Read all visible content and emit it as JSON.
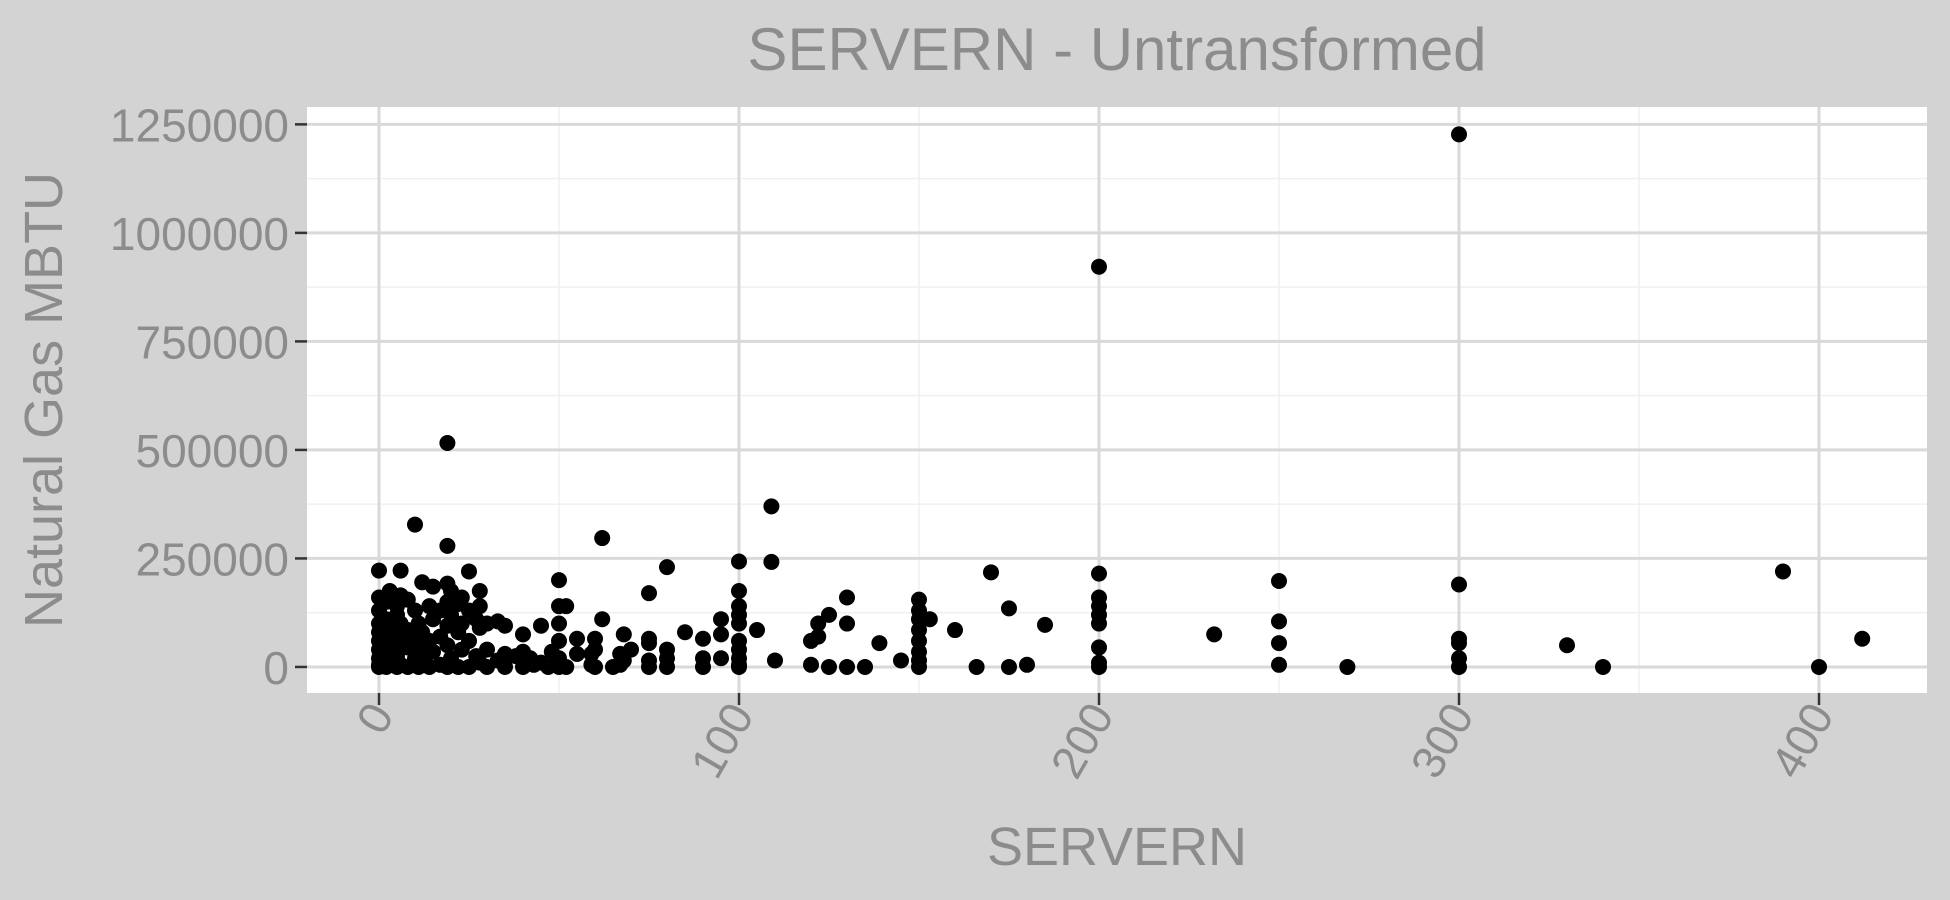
{
  "chart_data": {
    "type": "scatter",
    "title": "SERVERN - Untransformed",
    "xlabel": "SERVERN",
    "ylabel": "Natural Gas MBTU",
    "xlim": [
      -20,
      430
    ],
    "ylim": [
      -60000,
      1290000
    ],
    "x_ticks": [
      0,
      100,
      200,
      300,
      400
    ],
    "x_tick_labels": [
      "0",
      "100",
      "200",
      "300",
      "400"
    ],
    "y_ticks": [
      0,
      250000,
      500000,
      750000,
      1000000,
      1250000
    ],
    "y_tick_labels": [
      "0",
      "250000",
      "500000",
      "750000",
      "1000000",
      "1250000"
    ],
    "grid": true,
    "legend": "none",
    "colors": {
      "panel": "#ffffff",
      "background": "#d3d3d3",
      "grid": "#d9d9d9",
      "point": "#000000",
      "text": "#8c8c8c"
    },
    "points": [
      {
        "x": 0,
        "y": 222000
      },
      {
        "x": 0,
        "y": 160000
      },
      {
        "x": 0,
        "y": 130000
      },
      {
        "x": 0,
        "y": 100000
      },
      {
        "x": 0,
        "y": 80000
      },
      {
        "x": 0,
        "y": 60000
      },
      {
        "x": 0,
        "y": 40000
      },
      {
        "x": 0,
        "y": 20000
      },
      {
        "x": 0,
        "y": 5000
      },
      {
        "x": 0,
        "y": 0
      },
      {
        "x": 2,
        "y": 150000
      },
      {
        "x": 2,
        "y": 110000
      },
      {
        "x": 2,
        "y": 70000
      },
      {
        "x": 2,
        "y": 30000
      },
      {
        "x": 2,
        "y": 0
      },
      {
        "x": 3,
        "y": 175000
      },
      {
        "x": 3,
        "y": 90000
      },
      {
        "x": 3,
        "y": 50000
      },
      {
        "x": 3,
        "y": 10000
      },
      {
        "x": 5,
        "y": 140000
      },
      {
        "x": 5,
        "y": 120000
      },
      {
        "x": 5,
        "y": 75000
      },
      {
        "x": 5,
        "y": 25000
      },
      {
        "x": 5,
        "y": 0
      },
      {
        "x": 6,
        "y": 222000
      },
      {
        "x": 6,
        "y": 165000
      },
      {
        "x": 6,
        "y": 100000
      },
      {
        "x": 6,
        "y": 55000
      },
      {
        "x": 6,
        "y": 5000
      },
      {
        "x": 8,
        "y": 155000
      },
      {
        "x": 8,
        "y": 85000
      },
      {
        "x": 8,
        "y": 45000
      },
      {
        "x": 8,
        "y": 0
      },
      {
        "x": 10,
        "y": 328000
      },
      {
        "x": 10,
        "y": 130000
      },
      {
        "x": 10,
        "y": 65000
      },
      {
        "x": 10,
        "y": 20000
      },
      {
        "x": 11,
        "y": 100000
      },
      {
        "x": 11,
        "y": 40000
      },
      {
        "x": 11,
        "y": 0
      },
      {
        "x": 12,
        "y": 195000
      },
      {
        "x": 12,
        "y": 80000
      },
      {
        "x": 12,
        "y": 15000
      },
      {
        "x": 14,
        "y": 140000
      },
      {
        "x": 14,
        "y": 60000
      },
      {
        "x": 14,
        "y": 0
      },
      {
        "x": 15,
        "y": 185000
      },
      {
        "x": 15,
        "y": 110000
      },
      {
        "x": 15,
        "y": 35000
      },
      {
        "x": 17,
        "y": 130000
      },
      {
        "x": 17,
        "y": 70000
      },
      {
        "x": 17,
        "y": 5000
      },
      {
        "x": 19,
        "y": 516000
      },
      {
        "x": 19,
        "y": 279000
      },
      {
        "x": 19,
        "y": 192000
      },
      {
        "x": 19,
        "y": 150000
      },
      {
        "x": 19,
        "y": 95000
      },
      {
        "x": 19,
        "y": 50000
      },
      {
        "x": 19,
        "y": 0
      },
      {
        "x": 20,
        "y": 175000
      },
      {
        "x": 20,
        "y": 120000
      },
      {
        "x": 20,
        "y": 20000
      },
      {
        "x": 22,
        "y": 145000
      },
      {
        "x": 22,
        "y": 80000
      },
      {
        "x": 22,
        "y": 0
      },
      {
        "x": 23,
        "y": 160000
      },
      {
        "x": 23,
        "y": 100000
      },
      {
        "x": 23,
        "y": 40000
      },
      {
        "x": 25,
        "y": 220000
      },
      {
        "x": 25,
        "y": 130000
      },
      {
        "x": 25,
        "y": 60000
      },
      {
        "x": 25,
        "y": 0
      },
      {
        "x": 27,
        "y": 110000
      },
      {
        "x": 27,
        "y": 25000
      },
      {
        "x": 28,
        "y": 175000
      },
      {
        "x": 28,
        "y": 140000
      },
      {
        "x": 28,
        "y": 90000
      },
      {
        "x": 28,
        "y": 10000
      },
      {
        "x": 30,
        "y": 100000
      },
      {
        "x": 30,
        "y": 40000
      },
      {
        "x": 30,
        "y": 0
      },
      {
        "x": 33,
        "y": 105000
      },
      {
        "x": 33,
        "y": 15000
      },
      {
        "x": 35,
        "y": 95000
      },
      {
        "x": 35,
        "y": 30000
      },
      {
        "x": 35,
        "y": 0
      },
      {
        "x": 38,
        "y": 25000
      },
      {
        "x": 40,
        "y": 75000
      },
      {
        "x": 40,
        "y": 35000
      },
      {
        "x": 40,
        "y": 0
      },
      {
        "x": 42,
        "y": 20000
      },
      {
        "x": 43,
        "y": 5000
      },
      {
        "x": 45,
        "y": 95000
      },
      {
        "x": 45,
        "y": 10000
      },
      {
        "x": 47,
        "y": 0
      },
      {
        "x": 48,
        "y": 35000
      },
      {
        "x": 50,
        "y": 200000
      },
      {
        "x": 50,
        "y": 140000
      },
      {
        "x": 50,
        "y": 100000
      },
      {
        "x": 50,
        "y": 60000
      },
      {
        "x": 50,
        "y": 20000
      },
      {
        "x": 50,
        "y": 0
      },
      {
        "x": 52,
        "y": 140000
      },
      {
        "x": 52,
        "y": 0
      },
      {
        "x": 55,
        "y": 65000
      },
      {
        "x": 55,
        "y": 30000
      },
      {
        "x": 59,
        "y": 30000
      },
      {
        "x": 59,
        "y": 5000
      },
      {
        "x": 60,
        "y": 65000
      },
      {
        "x": 60,
        "y": 40000
      },
      {
        "x": 60,
        "y": 0
      },
      {
        "x": 62,
        "y": 297000
      },
      {
        "x": 62,
        "y": 110000
      },
      {
        "x": 65,
        "y": 0
      },
      {
        "x": 67,
        "y": 30000
      },
      {
        "x": 67,
        "y": 5000
      },
      {
        "x": 68,
        "y": 75000
      },
      {
        "x": 68,
        "y": 15000
      },
      {
        "x": 70,
        "y": 40000
      },
      {
        "x": 75,
        "y": 170000
      },
      {
        "x": 75,
        "y": 65000
      },
      {
        "x": 75,
        "y": 55000
      },
      {
        "x": 75,
        "y": 15000
      },
      {
        "x": 75,
        "y": 0
      },
      {
        "x": 80,
        "y": 230000
      },
      {
        "x": 80,
        "y": 40000
      },
      {
        "x": 80,
        "y": 20000
      },
      {
        "x": 80,
        "y": 0
      },
      {
        "x": 85,
        "y": 80000
      },
      {
        "x": 90,
        "y": 65000
      },
      {
        "x": 90,
        "y": 20000
      },
      {
        "x": 90,
        "y": 0
      },
      {
        "x": 95,
        "y": 110000
      },
      {
        "x": 95,
        "y": 75000
      },
      {
        "x": 95,
        "y": 20000
      },
      {
        "x": 100,
        "y": 243000
      },
      {
        "x": 100,
        "y": 175000
      },
      {
        "x": 100,
        "y": 140000
      },
      {
        "x": 100,
        "y": 120000
      },
      {
        "x": 100,
        "y": 100000
      },
      {
        "x": 100,
        "y": 60000
      },
      {
        "x": 100,
        "y": 40000
      },
      {
        "x": 100,
        "y": 20000
      },
      {
        "x": 100,
        "y": 5000
      },
      {
        "x": 100,
        "y": 0
      },
      {
        "x": 105,
        "y": 85000
      },
      {
        "x": 109,
        "y": 370000
      },
      {
        "x": 109,
        "y": 242000
      },
      {
        "x": 110,
        "y": 15000
      },
      {
        "x": 120,
        "y": 60000
      },
      {
        "x": 120,
        "y": 5000
      },
      {
        "x": 122,
        "y": 100000
      },
      {
        "x": 122,
        "y": 70000
      },
      {
        "x": 125,
        "y": 120000
      },
      {
        "x": 125,
        "y": 0
      },
      {
        "x": 130,
        "y": 160000
      },
      {
        "x": 130,
        "y": 100000
      },
      {
        "x": 130,
        "y": 0
      },
      {
        "x": 135,
        "y": 0
      },
      {
        "x": 139,
        "y": 55000
      },
      {
        "x": 145,
        "y": 15000
      },
      {
        "x": 150,
        "y": 155000
      },
      {
        "x": 150,
        "y": 130000
      },
      {
        "x": 150,
        "y": 110000
      },
      {
        "x": 150,
        "y": 85000
      },
      {
        "x": 150,
        "y": 60000
      },
      {
        "x": 150,
        "y": 35000
      },
      {
        "x": 150,
        "y": 15000
      },
      {
        "x": 150,
        "y": 0
      },
      {
        "x": 153,
        "y": 110000
      },
      {
        "x": 160,
        "y": 85000
      },
      {
        "x": 166,
        "y": 0
      },
      {
        "x": 170,
        "y": 218000
      },
      {
        "x": 175,
        "y": 135000
      },
      {
        "x": 175,
        "y": 0
      },
      {
        "x": 180,
        "y": 5000
      },
      {
        "x": 185,
        "y": 97000
      },
      {
        "x": 200,
        "y": 922000
      },
      {
        "x": 200,
        "y": 215000
      },
      {
        "x": 200,
        "y": 160000
      },
      {
        "x": 200,
        "y": 140000
      },
      {
        "x": 200,
        "y": 120000
      },
      {
        "x": 200,
        "y": 100000
      },
      {
        "x": 200,
        "y": 45000
      },
      {
        "x": 200,
        "y": 10000
      },
      {
        "x": 200,
        "y": 0
      },
      {
        "x": 232,
        "y": 75000
      },
      {
        "x": 250,
        "y": 198000
      },
      {
        "x": 250,
        "y": 105000
      },
      {
        "x": 250,
        "y": 55000
      },
      {
        "x": 250,
        "y": 5000
      },
      {
        "x": 269,
        "y": 0
      },
      {
        "x": 300,
        "y": 1227000
      },
      {
        "x": 300,
        "y": 190000
      },
      {
        "x": 300,
        "y": 65000
      },
      {
        "x": 300,
        "y": 55000
      },
      {
        "x": 300,
        "y": 20000
      },
      {
        "x": 300,
        "y": 0
      },
      {
        "x": 330,
        "y": 50000
      },
      {
        "x": 340,
        "y": 0
      },
      {
        "x": 390,
        "y": 220000
      },
      {
        "x": 400,
        "y": 0
      },
      {
        "x": 412,
        "y": 65000
      }
    ]
  }
}
